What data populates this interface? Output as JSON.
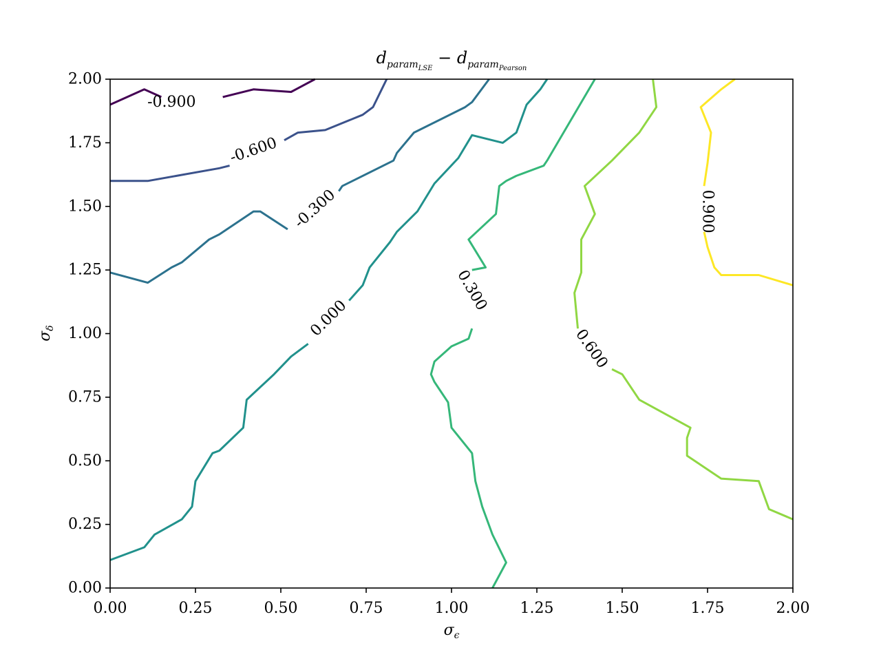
{
  "chart_data": {
    "type": "contour",
    "title": {
      "main": "d",
      "sub1": "param",
      "sub2": "LSE",
      "op": " − ",
      "main2": "d",
      "sub3": "param",
      "sub4": "Pearson"
    },
    "xlabel": {
      "symbol": "σ",
      "sub": "ϵ"
    },
    "ylabel": {
      "symbol": "σ",
      "sub": "δ"
    },
    "xlim": [
      0,
      2
    ],
    "ylim": [
      0,
      2
    ],
    "xticks": [
      "0.00",
      "0.25",
      "0.50",
      "0.75",
      "1.00",
      "1.25",
      "1.50",
      "1.75",
      "2.00"
    ],
    "yticks": [
      "0.00",
      "0.25",
      "0.50",
      "0.75",
      "1.00",
      "1.25",
      "1.50",
      "1.75",
      "2.00"
    ],
    "grid": false,
    "levels": [
      {
        "level": -0.9,
        "label": "-0.900",
        "color": "#440154",
        "label_at": [
          0.18,
          1.91
        ],
        "label_angle": 0,
        "segments": [
          [
            [
              0.0,
              1.9
            ],
            [
              0.1,
              1.96
            ],
            [
              0.15,
              1.93
            ]
          ],
          [
            [
              0.33,
              1.93
            ],
            [
              0.42,
              1.96
            ],
            [
              0.53,
              1.95
            ],
            [
              0.6,
              2.0
            ]
          ]
        ]
      },
      {
        "level": -0.6,
        "label": "-0.600",
        "color": "#3b528b",
        "label_at": [
          0.42,
          1.72
        ],
        "label_angle": -19,
        "segments": [
          [
            [
              0.0,
              1.6
            ],
            [
              0.11,
              1.6
            ],
            [
              0.32,
              1.65
            ],
            [
              0.35,
              1.66
            ]
          ],
          [
            [
              0.51,
              1.76
            ],
            [
              0.55,
              1.79
            ],
            [
              0.63,
              1.8
            ],
            [
              0.74,
              1.86
            ],
            [
              0.77,
              1.89
            ],
            [
              0.81,
              2.0
            ]
          ]
        ]
      },
      {
        "level": -0.3,
        "label": "-0.300",
        "color": "#2c728e",
        "label_at": [
          0.6,
          1.49
        ],
        "label_angle": -42,
        "segments": [
          [
            [
              0.0,
              1.24
            ],
            [
              0.11,
              1.2
            ],
            [
              0.18,
              1.26
            ],
            [
              0.21,
              1.28
            ],
            [
              0.29,
              1.37
            ],
            [
              0.32,
              1.39
            ],
            [
              0.42,
              1.48
            ],
            [
              0.44,
              1.48
            ],
            [
              0.52,
              1.41
            ]
          ],
          [
            [
              0.67,
              1.56
            ],
            [
              0.68,
              1.58
            ],
            [
              0.83,
              1.68
            ],
            [
              0.84,
              1.71
            ],
            [
              0.89,
              1.79
            ],
            [
              1.04,
              1.89
            ],
            [
              1.06,
              1.91
            ],
            [
              1.11,
              2.0
            ]
          ]
        ]
      },
      {
        "level": 0.0,
        "label": "0.000",
        "color": "#21918c",
        "label_at": [
          0.64,
          1.06
        ],
        "label_angle": -45,
        "segments": [
          [
            [
              0.0,
              0.11
            ],
            [
              0.1,
              0.16
            ],
            [
              0.13,
              0.21
            ],
            [
              0.21,
              0.27
            ],
            [
              0.24,
              0.32
            ],
            [
              0.25,
              0.42
            ],
            [
              0.3,
              0.53
            ],
            [
              0.32,
              0.54
            ],
            [
              0.39,
              0.63
            ],
            [
              0.4,
              0.74
            ],
            [
              0.48,
              0.84
            ],
            [
              0.53,
              0.91
            ],
            [
              0.58,
              0.96
            ]
          ],
          [
            [
              0.7,
              1.13
            ],
            [
              0.74,
              1.19
            ],
            [
              0.76,
              1.26
            ],
            [
              0.82,
              1.36
            ],
            [
              0.84,
              1.4
            ],
            [
              0.9,
              1.48
            ],
            [
              0.95,
              1.59
            ],
            [
              1.02,
              1.69
            ],
            [
              1.06,
              1.78
            ],
            [
              1.15,
              1.75
            ],
            [
              1.19,
              1.79
            ],
            [
              1.22,
              1.9
            ],
            [
              1.26,
              1.96
            ],
            [
              1.28,
              2.0
            ]
          ]
        ]
      },
      {
        "level": 0.3,
        "label": "0.300",
        "color": "#35b779",
        "label_at": [
          1.06,
          1.17
        ],
        "label_angle": 60,
        "segments": [
          [
            [
              1.12,
              0.0
            ],
            [
              1.16,
              0.1
            ],
            [
              1.12,
              0.21
            ],
            [
              1.09,
              0.32
            ],
            [
              1.07,
              0.42
            ],
            [
              1.06,
              0.53
            ],
            [
              1.0,
              0.63
            ],
            [
              0.99,
              0.73
            ],
            [
              0.95,
              0.81
            ],
            [
              0.94,
              0.84
            ],
            [
              0.95,
              0.89
            ],
            [
              1.0,
              0.95
            ],
            [
              1.05,
              0.98
            ],
            [
              1.06,
              1.02
            ]
          ],
          [
            [
              1.06,
              1.25
            ],
            [
              1.1,
              1.26
            ],
            [
              1.05,
              1.37
            ],
            [
              1.13,
              1.47
            ],
            [
              1.14,
              1.58
            ],
            [
              1.16,
              1.6
            ],
            [
              1.19,
              1.62
            ],
            [
              1.27,
              1.66
            ],
            [
              1.28,
              1.68
            ],
            [
              1.42,
              2.0
            ]
          ]
        ]
      },
      {
        "level": 0.6,
        "label": "0.600",
        "color": "#90d743",
        "label_at": [
          1.41,
          0.94
        ],
        "label_angle": 55,
        "segments": [
          [
            [
              2.0,
              0.27
            ],
            [
              1.93,
              0.31
            ],
            [
              1.9,
              0.42
            ],
            [
              1.79,
              0.43
            ],
            [
              1.69,
              0.52
            ],
            [
              1.69,
              0.59
            ],
            [
              1.7,
              0.63
            ],
            [
              1.55,
              0.74
            ],
            [
              1.5,
              0.84
            ],
            [
              1.47,
              0.86
            ]
          ],
          [
            [
              1.37,
              1.02
            ],
            [
              1.36,
              1.16
            ],
            [
              1.38,
              1.24
            ],
            [
              1.38,
              1.37
            ],
            [
              1.42,
              1.47
            ],
            [
              1.39,
              1.58
            ],
            [
              1.47,
              1.68
            ],
            [
              1.55,
              1.79
            ],
            [
              1.6,
              1.89
            ],
            [
              1.59,
              2.0
            ]
          ]
        ]
      },
      {
        "level": 0.9,
        "label": "0.900",
        "color": "#fde725",
        "label_at": [
          1.75,
          1.48
        ],
        "label_angle": 90,
        "segments": [
          [
            [
              2.0,
              1.19
            ],
            [
              1.9,
              1.23
            ],
            [
              1.79,
              1.23
            ],
            [
              1.77,
              1.26
            ],
            [
              1.75,
              1.34
            ],
            [
              1.74,
              1.4
            ]
          ],
          [
            [
              1.74,
              1.58
            ],
            [
              1.75,
              1.67
            ],
            [
              1.76,
              1.79
            ],
            [
              1.73,
              1.89
            ],
            [
              1.79,
              1.96
            ],
            [
              1.83,
              2.0
            ]
          ]
        ]
      }
    ]
  }
}
